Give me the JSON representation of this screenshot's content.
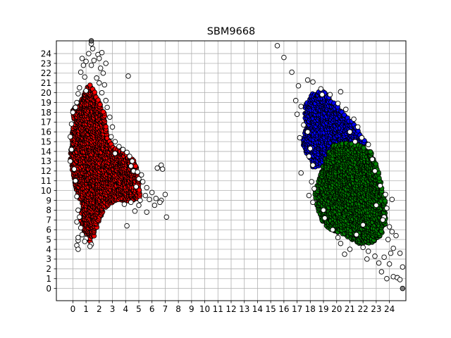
{
  "chart_data": {
    "type": "scatter",
    "title": "SBM9668",
    "xlabel": "",
    "ylabel": "",
    "xlim": [
      -1.25,
      25.25
    ],
    "ylim": [
      -1.25,
      25.3
    ],
    "xticks": [
      0,
      1,
      2,
      3,
      4,
      5,
      6,
      7,
      8,
      9,
      10,
      11,
      12,
      13,
      14,
      15,
      16,
      17,
      18,
      19,
      20,
      21,
      22,
      23,
      24
    ],
    "yticks": [
      0,
      1,
      2,
      3,
      4,
      5,
      6,
      7,
      8,
      9,
      10,
      11,
      12,
      13,
      14,
      15,
      16,
      17,
      18,
      19,
      20,
      21,
      22,
      23,
      24
    ],
    "grid": true,
    "legend": "none",
    "series": [
      {
        "color": "#ffffff",
        "points": [
          [
            1.4,
            25.0
          ],
          [
            1.2,
            24.0
          ],
          [
            1.9,
            23.9
          ],
          [
            0.7,
            23.5
          ],
          [
            1.0,
            23.2
          ],
          [
            2.0,
            23.5
          ],
          [
            1.6,
            23.3
          ],
          [
            2.2,
            24.1
          ],
          [
            0.8,
            22.8
          ],
          [
            1.4,
            22.8
          ],
          [
            2.1,
            22.5
          ],
          [
            0.6,
            22.1
          ],
          [
            2.3,
            22.0
          ],
          [
            0.9,
            21.6
          ],
          [
            1.8,
            21.5
          ],
          [
            2.0,
            21.0
          ],
          [
            0.5,
            20.5
          ],
          [
            2.4,
            20.8
          ],
          [
            0.4,
            19.9
          ],
          [
            2.2,
            20.0
          ],
          [
            2.5,
            19.2
          ],
          [
            0.3,
            19.0
          ],
          [
            0.2,
            18.5
          ],
          [
            2.6,
            18.5
          ],
          [
            0.0,
            18.0
          ],
          [
            2.8,
            17.5
          ],
          [
            -0.1,
            16.8
          ],
          [
            3.0,
            16.5
          ],
          [
            2.9,
            15.5
          ],
          [
            3.2,
            15.0
          ],
          [
            -0.2,
            15.5
          ],
          [
            3.5,
            14.5
          ],
          [
            -0.1,
            14.2
          ],
          [
            3.8,
            14.2
          ],
          [
            4.1,
            13.9
          ],
          [
            -0.2,
            13.0
          ],
          [
            4.3,
            13.5
          ],
          [
            4.5,
            13.0
          ],
          [
            0.1,
            12.2
          ],
          [
            4.4,
            12.5
          ],
          [
            4.6,
            12.0
          ],
          [
            4.9,
            11.9
          ],
          [
            5.2,
            11.6
          ],
          [
            0.2,
            11.0
          ],
          [
            5.0,
            11.2
          ],
          [
            5.3,
            10.9
          ],
          [
            5.6,
            10.3
          ],
          [
            4.8,
            10.4
          ],
          [
            6.0,
            9.8
          ],
          [
            5.5,
            9.5
          ],
          [
            0.3,
            9.4
          ],
          [
            5.8,
            9.1
          ],
          [
            6.3,
            9.2
          ],
          [
            5.1,
            9.0
          ],
          [
            4.4,
            8.8
          ],
          [
            3.9,
            8.6
          ],
          [
            6.7,
            9.0
          ],
          [
            5.0,
            8.5
          ],
          [
            6.6,
            8.8
          ],
          [
            7.0,
            9.6
          ],
          [
            6.2,
            8.5
          ],
          [
            4.7,
            7.9
          ],
          [
            5.6,
            7.8
          ],
          [
            7.1,
            7.3
          ],
          [
            0.4,
            8.0
          ],
          [
            0.5,
            7.3
          ],
          [
            0.3,
            6.8
          ],
          [
            0.6,
            6.2
          ],
          [
            0.7,
            5.5
          ],
          [
            1.0,
            5.1
          ],
          [
            0.4,
            4.9
          ],
          [
            0.9,
            4.8
          ],
          [
            0.3,
            4.4
          ],
          [
            1.4,
            4.5
          ],
          [
            1.3,
            4.3
          ],
          [
            0.4,
            4.0
          ],
          [
            4.1,
            6.4
          ],
          [
            4.2,
            21.7
          ],
          [
            6.7,
            12.6
          ],
          [
            6.8,
            12.2
          ],
          [
            6.4,
            12.3
          ],
          [
            3.2,
            13.8
          ],
          [
            1.0,
            20.2
          ],
          [
            0.4,
            5.2
          ],
          [
            1.5,
            24.5
          ],
          [
            2.5,
            23.0
          ],
          [
            15.5,
            24.8
          ],
          [
            16.0,
            23.6
          ],
          [
            16.6,
            22.1
          ],
          [
            17.1,
            20.7
          ],
          [
            17.8,
            21.3
          ],
          [
            16.9,
            19.2
          ],
          [
            17.3,
            18.6
          ],
          [
            17.0,
            17.8
          ],
          [
            17.5,
            16.7
          ],
          [
            17.8,
            16.0
          ],
          [
            17.2,
            15.4
          ],
          [
            18.0,
            14.3
          ],
          [
            17.9,
            13.5
          ],
          [
            18.2,
            12.6
          ],
          [
            17.3,
            11.8
          ],
          [
            18.1,
            10.9
          ],
          [
            18.3,
            10.2
          ],
          [
            17.9,
            9.5
          ],
          [
            18.2,
            8.8
          ],
          [
            19.0,
            8.0
          ],
          [
            19.1,
            7.2
          ],
          [
            19.7,
            6.0
          ],
          [
            20.1,
            5.2
          ],
          [
            20.3,
            4.6
          ],
          [
            20.6,
            3.5
          ],
          [
            21.0,
            4.0
          ],
          [
            22.3,
            3.0
          ],
          [
            22.0,
            4.2
          ],
          [
            22.4,
            3.8
          ],
          [
            22.9,
            3.3
          ],
          [
            23.2,
            2.6
          ],
          [
            23.4,
            1.7
          ],
          [
            23.6,
            3.2
          ],
          [
            23.8,
            1.0
          ],
          [
            24.0,
            2.5
          ],
          [
            24.1,
            3.6
          ],
          [
            24.3,
            1.2
          ],
          [
            24.6,
            1.1
          ],
          [
            24.8,
            0.9
          ],
          [
            24.8,
            3.6
          ],
          [
            25.0,
            2.2
          ],
          [
            24.2,
            5.8
          ],
          [
            24.5,
            5.4
          ],
          [
            24.0,
            6.3
          ],
          [
            23.9,
            5.0
          ],
          [
            24.3,
            4.1
          ],
          [
            23.6,
            7.3
          ],
          [
            23.8,
            8.2
          ],
          [
            24.2,
            9.1
          ],
          [
            23.7,
            9.6
          ],
          [
            23.3,
            10.5
          ],
          [
            22.9,
            12.0
          ],
          [
            22.7,
            13.2
          ],
          [
            22.4,
            14.7
          ],
          [
            21.9,
            15.4
          ],
          [
            21.6,
            16.5
          ],
          [
            21.3,
            17.3
          ],
          [
            20.7,
            18.3
          ],
          [
            20.1,
            18.9
          ],
          [
            19.5,
            19.8
          ],
          [
            20.3,
            20.1
          ],
          [
            18.8,
            20.4
          ],
          [
            18.2,
            21.1
          ],
          [
            18.9,
            19.8
          ],
          [
            21.0,
            16.0
          ],
          [
            21.4,
            15.0
          ],
          [
            23.5,
            7.0
          ],
          [
            23.0,
            8.5
          ],
          [
            22.0,
            6.5
          ],
          [
            21.5,
            5.5
          ]
        ]
      },
      {
        "color": "#808080",
        "points": [
          [
            1.4,
            25.3
          ],
          [
            25.0,
            0.0
          ]
        ]
      }
    ],
    "clusters": [
      {
        "color": "#ff0000",
        "outline": [
          [
            0.0,
            18.2
          ],
          [
            0.7,
            19.5
          ],
          [
            1.3,
            21.1
          ],
          [
            1.9,
            19.3
          ],
          [
            2.4,
            17.9
          ],
          [
            2.6,
            15.5
          ],
          [
            3.0,
            14.5
          ],
          [
            3.9,
            13.9
          ],
          [
            4.7,
            13.0
          ],
          [
            5.0,
            11.3
          ],
          [
            5.1,
            9.3
          ],
          [
            4.3,
            8.9
          ],
          [
            3.4,
            9.1
          ],
          [
            2.4,
            8.2
          ],
          [
            2.0,
            7.0
          ],
          [
            1.6,
            5.3
          ],
          [
            1.3,
            4.7
          ],
          [
            0.9,
            5.6
          ],
          [
            0.6,
            7.0
          ],
          [
            0.7,
            8.5
          ],
          [
            0.3,
            9.9
          ],
          [
            0.0,
            11.5
          ],
          [
            -0.2,
            13.3
          ],
          [
            -0.1,
            15.4
          ],
          [
            0.1,
            17.0
          ]
        ],
        "density": 7
      },
      {
        "color": "#0000ff",
        "outline": [
          [
            18.1,
            19.9
          ],
          [
            19.0,
            20.2
          ],
          [
            19.8,
            19.0
          ],
          [
            20.4,
            18.1
          ],
          [
            21.2,
            17.0
          ],
          [
            21.7,
            16.0
          ],
          [
            22.3,
            14.8
          ],
          [
            21.4,
            14.2
          ],
          [
            20.4,
            14.3
          ],
          [
            19.6,
            13.6
          ],
          [
            18.8,
            12.6
          ],
          [
            18.2,
            12.3
          ],
          [
            17.8,
            13.6
          ],
          [
            17.3,
            15.0
          ],
          [
            17.7,
            16.4
          ],
          [
            17.6,
            17.6
          ],
          [
            17.6,
            18.8
          ]
        ],
        "density": 6
      },
      {
        "color": "#008000",
        "outline": [
          [
            19.7,
            14.6
          ],
          [
            20.7,
            14.9
          ],
          [
            21.8,
            14.6
          ],
          [
            22.6,
            14.0
          ],
          [
            23.1,
            12.3
          ],
          [
            23.4,
            10.6
          ],
          [
            23.6,
            9.6
          ],
          [
            23.8,
            8.2
          ],
          [
            23.7,
            6.6
          ],
          [
            23.3,
            5.2
          ],
          [
            22.6,
            4.6
          ],
          [
            21.7,
            4.5
          ],
          [
            21.0,
            5.1
          ],
          [
            20.4,
            5.6
          ],
          [
            19.7,
            5.9
          ],
          [
            19.0,
            6.6
          ],
          [
            18.6,
            8.0
          ],
          [
            18.3,
            9.5
          ],
          [
            18.6,
            10.9
          ],
          [
            18.9,
            12.4
          ],
          [
            19.3,
            13.6
          ]
        ],
        "density": 6
      }
    ]
  }
}
